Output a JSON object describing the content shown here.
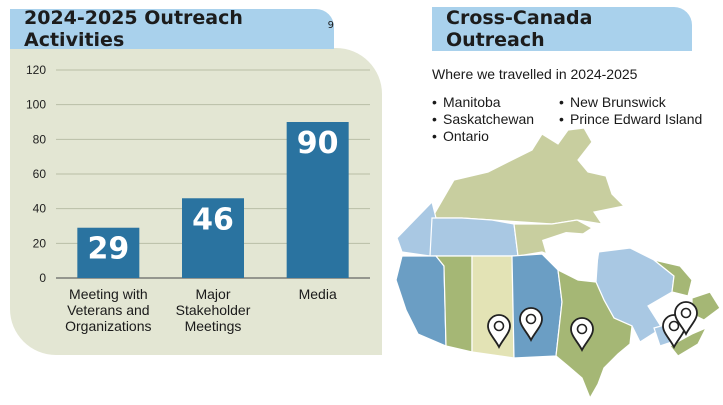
{
  "left_panel": {
    "title": "2024-2025 Outreach Activities",
    "footnote_marker": "9"
  },
  "right_panel": {
    "title": "Cross-Canada Outreach",
    "travel_heading": "Where we travelled in 2024-2025",
    "provinces_col1": [
      "Manitoba",
      "Saskatchewan",
      "Ontario"
    ],
    "provinces_col2": [
      "New Brunswick",
      "Prince Edward Island"
    ]
  },
  "chart_data": {
    "type": "bar",
    "categories": [
      [
        "Meeting with",
        "Veterans and",
        "Organizations"
      ],
      [
        "Major",
        "Stakeholder",
        "Meetings"
      ],
      [
        "Media"
      ]
    ],
    "values": [
      29,
      46,
      90
    ],
    "data_labels": [
      "29",
      "46",
      "90"
    ],
    "ylim": [
      0,
      120
    ],
    "yticks": [
      0,
      20,
      40,
      60,
      80,
      100,
      120
    ],
    "grid": true,
    "bar_color": "#2a73a0"
  },
  "colors": {
    "header_tab": "#a9d1ec",
    "panel_bg": "#e3e6d3",
    "bar": "#2a73a0",
    "map_blue_dark": "#6b9ec4",
    "map_blue_light": "#a9c8e3",
    "map_green": "#a5b775",
    "map_green_light": "#cbd3a3",
    "map_yellow": "#e3e3b5",
    "map_north": "#c8ce9f"
  },
  "map": {
    "visited": [
      "Manitoba",
      "Saskatchewan",
      "Ontario",
      "New Brunswick",
      "Prince Edward Island"
    ],
    "marker_icon": "map-pin-icon"
  }
}
